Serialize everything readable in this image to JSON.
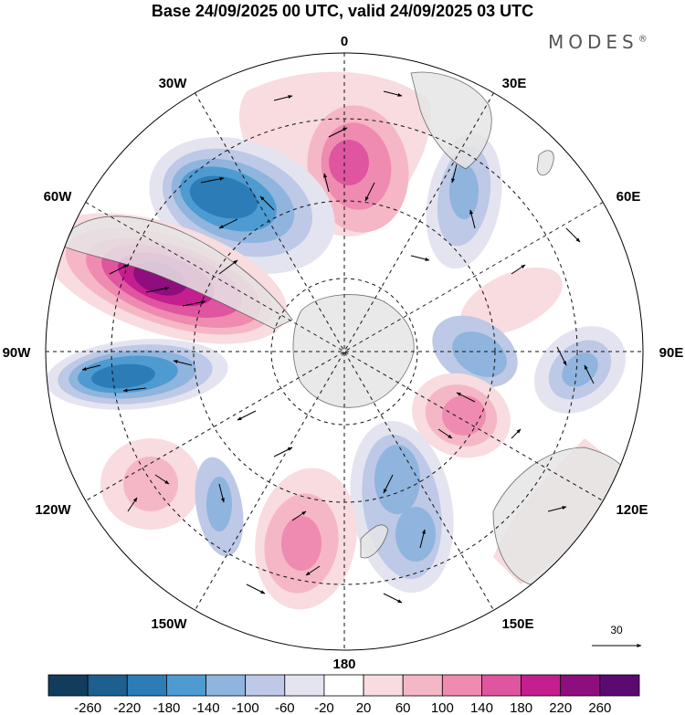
{
  "title": "Base 24/09/2025 00 UTC, valid 24/09/2025 03 UTC",
  "brand": "MODES",
  "brand_mark": "®",
  "longitude_labels": [
    "0",
    "30E",
    "60E",
    "90E",
    "120E",
    "150E",
    "180",
    "150W",
    "120W",
    "90W",
    "60W",
    "30W"
  ],
  "vector_reference": {
    "value": "30"
  },
  "colorbar": {
    "ticks": [
      "-260",
      "-220",
      "-180",
      "-140",
      "-100",
      "-60",
      "-20",
      "20",
      "60",
      "100",
      "140",
      "180",
      "220",
      "260"
    ],
    "colors": [
      "#123c5c",
      "#1d5f8f",
      "#2c7cb8",
      "#4e9bd1",
      "#8fb4dd",
      "#bdc9e6",
      "#e4e4f1",
      "#ffffff",
      "#f8dcdf",
      "#f5b7c6",
      "#ef8bb0",
      "#e0559f",
      "#c41e8f",
      "#8f0e7d",
      "#5a0a70"
    ]
  },
  "map": {
    "projection": "south polar stereographic",
    "land_color": "#e6e6e6"
  }
}
